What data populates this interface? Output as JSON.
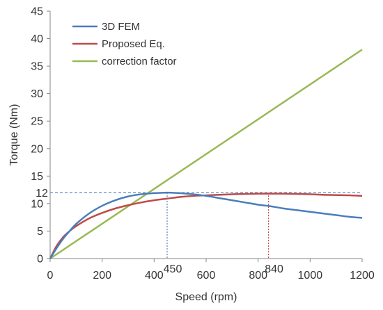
{
  "chart_data": {
    "type": "line",
    "title": "",
    "xlabel": "Speed (rpm)",
    "ylabel": "Torque (Nm)",
    "xlim": [
      0,
      1200
    ],
    "ylim": [
      0,
      45
    ],
    "xticks": [
      0,
      200,
      400,
      600,
      800,
      1000,
      1200
    ],
    "yticks": [
      0,
      5,
      10,
      15,
      20,
      25,
      30,
      35,
      40,
      45
    ],
    "grid": false,
    "legend": "top-left",
    "series": [
      {
        "name": "3D FEM",
        "color": "#4a7ebb",
        "x": [
          0,
          25,
          50,
          75,
          100,
          150,
          200,
          250,
          300,
          350,
          400,
          450,
          500,
          550,
          600,
          650,
          700,
          750,
          800,
          850,
          900,
          950,
          1000,
          1050,
          1100,
          1150,
          1200
        ],
        "y": [
          0,
          1.9,
          3.6,
          5.0,
          6.3,
          8.2,
          9.6,
          10.6,
          11.3,
          11.7,
          11.9,
          12.0,
          11.9,
          11.7,
          11.4,
          11.0,
          10.6,
          10.2,
          9.8,
          9.5,
          9.1,
          8.8,
          8.5,
          8.2,
          7.9,
          7.6,
          7.4
        ]
      },
      {
        "name": "Proposed Eq.",
        "color": "#be4b48",
        "x": [
          0,
          25,
          50,
          75,
          100,
          150,
          200,
          250,
          300,
          350,
          400,
          450,
          500,
          550,
          600,
          650,
          700,
          750,
          800,
          850,
          900,
          950,
          1000,
          1050,
          1100,
          1150,
          1200
        ],
        "y": [
          0,
          2.3,
          3.9,
          5.0,
          5.9,
          7.3,
          8.3,
          9.1,
          9.7,
          10.2,
          10.6,
          10.9,
          11.2,
          11.4,
          11.5,
          11.6,
          11.7,
          11.75,
          11.8,
          11.8,
          11.8,
          11.75,
          11.7,
          11.6,
          11.55,
          11.5,
          11.4
        ]
      },
      {
        "name": "correction factor",
        "color": "#98b954",
        "x": [
          0,
          1200
        ],
        "y": [
          0,
          38
        ]
      }
    ],
    "annotations": {
      "hline": {
        "y": 12,
        "label": "12",
        "color": "#4a7ebb"
      },
      "vlines": [
        {
          "x": 450,
          "label": "450",
          "color": "#4a7ebb"
        },
        {
          "x": 840,
          "label": "840",
          "color": "#be4b48"
        }
      ]
    }
  }
}
